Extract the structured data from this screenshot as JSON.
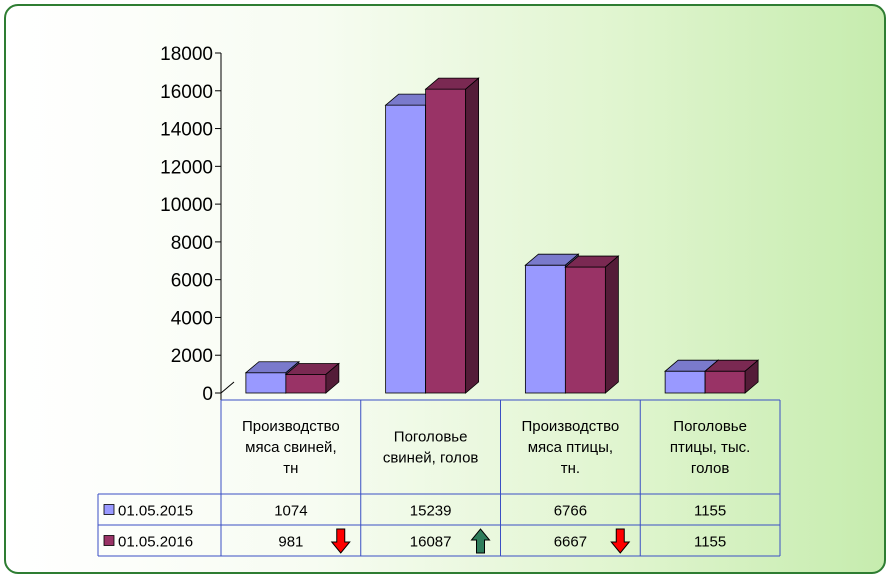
{
  "chart_data": {
    "type": "bar",
    "title": "",
    "xlabel": "",
    "ylabel": "",
    "ylim": [
      0,
      18000
    ],
    "yticks": [
      "0",
      "2000",
      "4000",
      "6000",
      "8000",
      "10000",
      "12000",
      "14000",
      "16000",
      "18000"
    ],
    "categories": [
      [
        "Производство",
        "мяса свиней,",
        "тн"
      ],
      [
        "Поголовье",
        "свиней, голов"
      ],
      [
        "Производство",
        "мяса птицы,",
        "тн."
      ],
      [
        "Поголовье",
        "птицы, тыс.",
        "голов"
      ]
    ],
    "series": [
      {
        "name": "01.05.2015",
        "color": "#9999ff",
        "values": [
          1074,
          15239,
          6766,
          1155
        ],
        "labels": [
          "1074",
          "15239",
          "6766",
          "1155"
        ]
      },
      {
        "name": "01.05.2016",
        "color": "#993366",
        "values": [
          981,
          16087,
          6667,
          1155
        ],
        "labels": [
          "981",
          "16087",
          "6667",
          "1155"
        ]
      }
    ],
    "indicators": [
      {
        "series": 1,
        "category": 0,
        "direction": "down",
        "color": "#ff0000"
      },
      {
        "series": 1,
        "category": 1,
        "direction": "up",
        "color": "#2e7d5b"
      },
      {
        "series": 1,
        "category": 2,
        "direction": "down",
        "color": "#ff0000"
      }
    ],
    "legend_placement": "table-left",
    "grid": false
  }
}
